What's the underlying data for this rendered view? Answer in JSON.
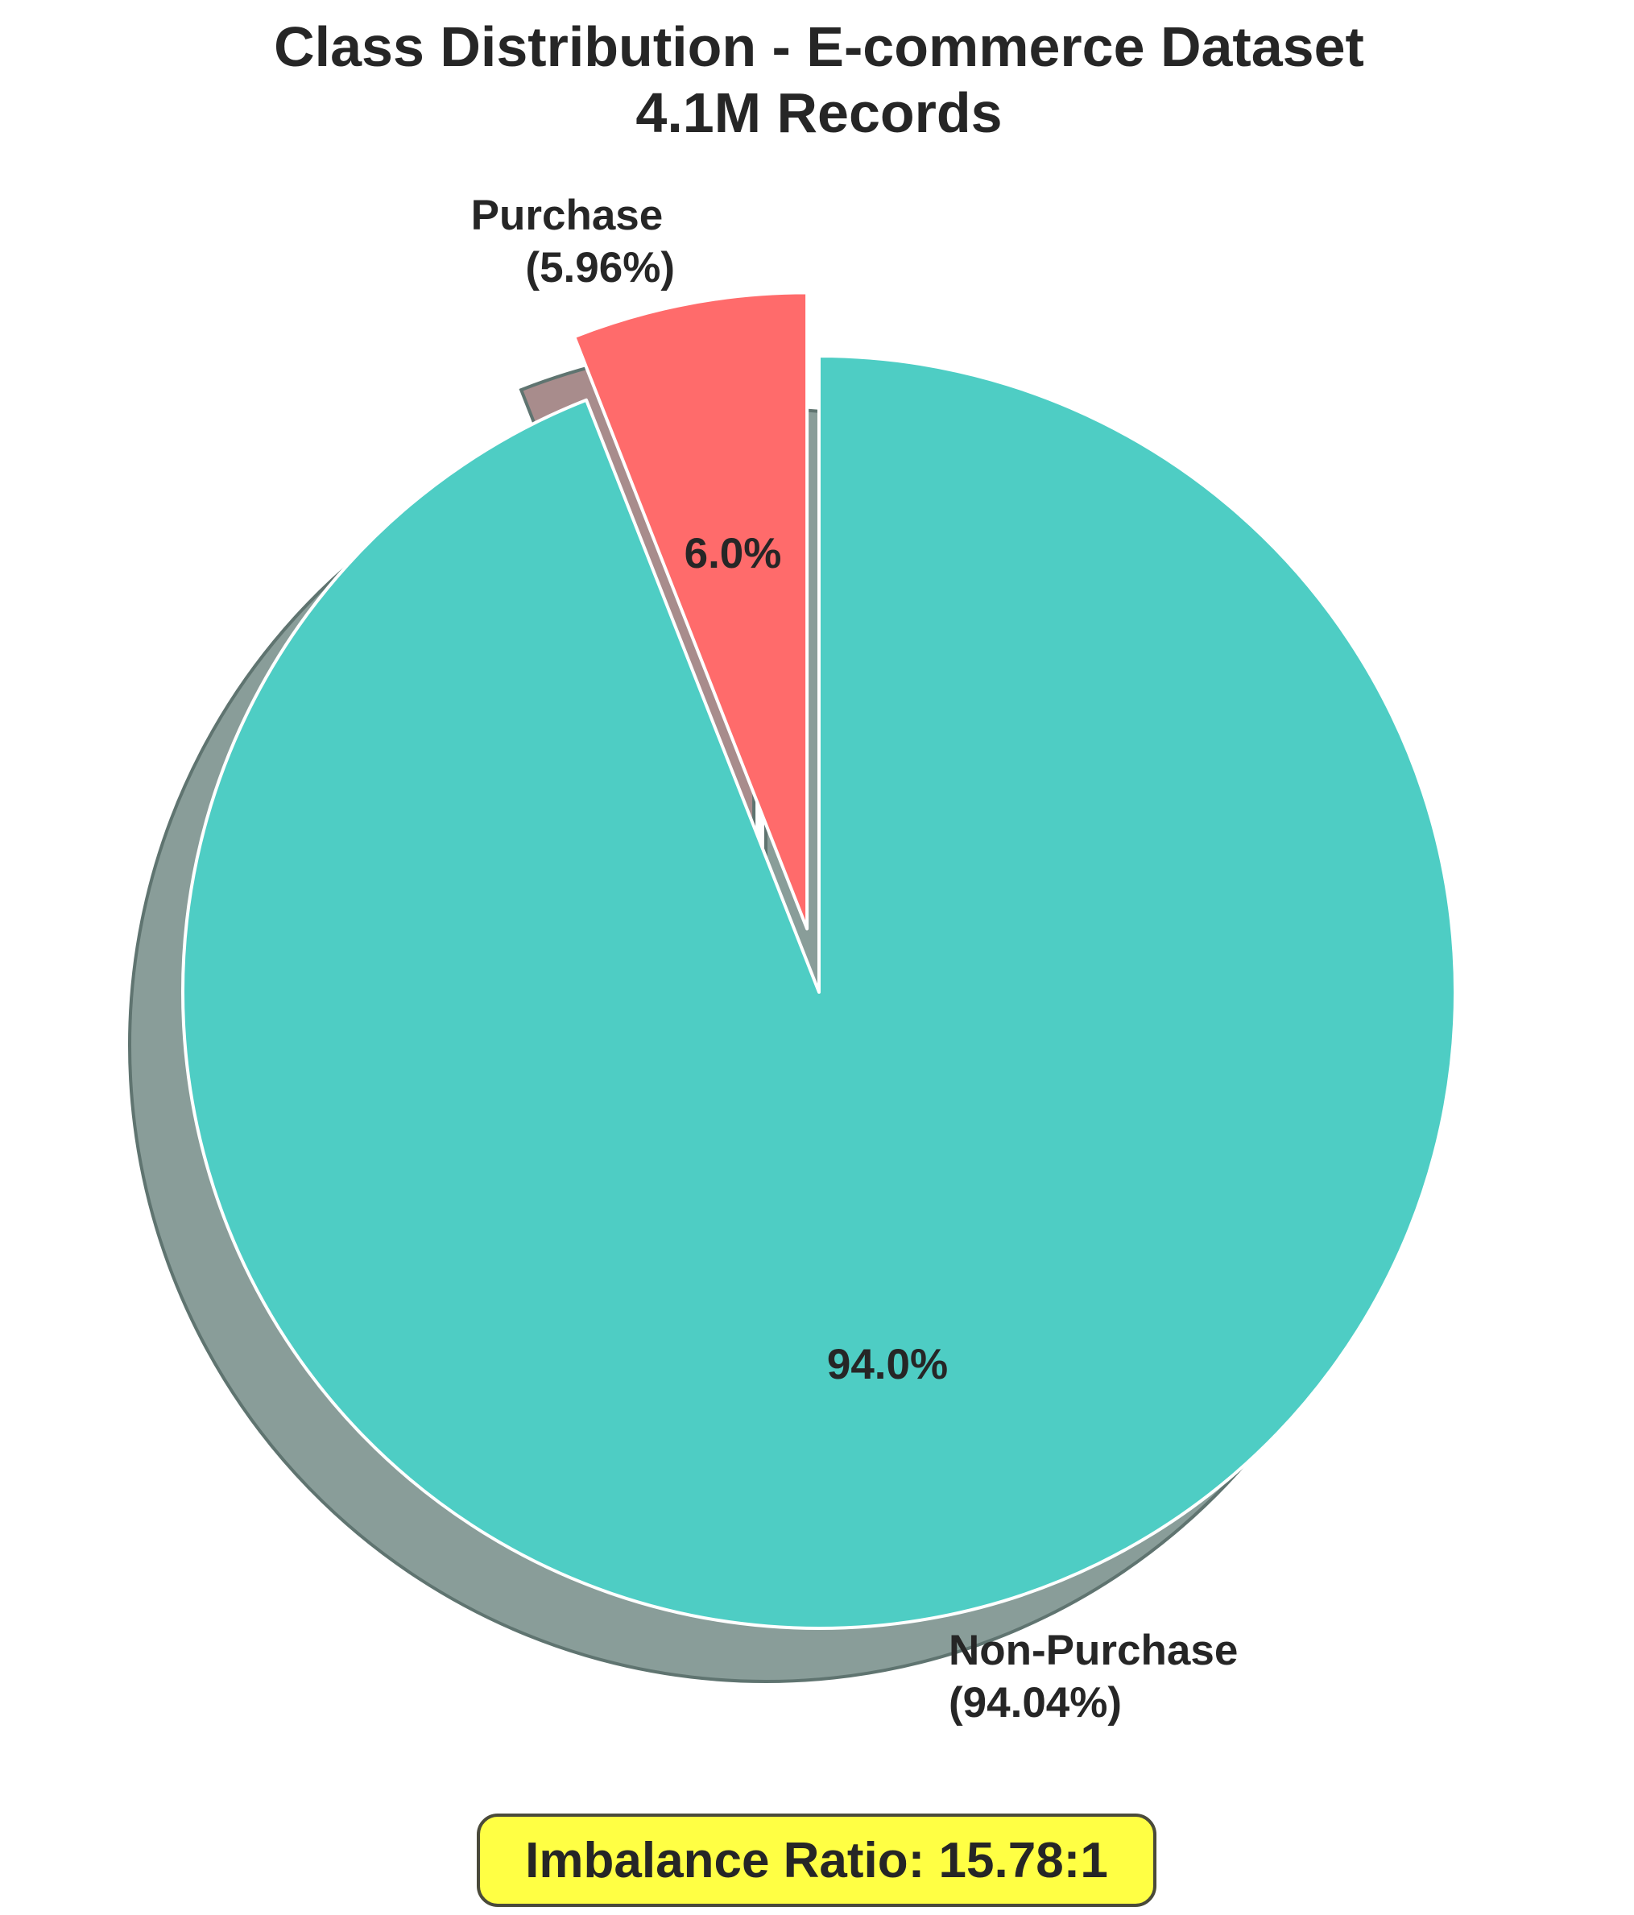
{
  "chart_data": {
    "type": "pie",
    "title": "Class Distribution - E-commerce Dataset",
    "subtitle": "4.1M Records",
    "slices": [
      {
        "label": "Purchase",
        "label_percent": "(5.96%)",
        "value": 5.96,
        "autopct": "6.0%",
        "color": "#ff6b6b",
        "shadow_color": "#a88c8c",
        "exploded": true
      },
      {
        "label": "Non-Purchase",
        "label_percent": "(94.04%)",
        "value": 94.04,
        "autopct": "94.0%",
        "color": "#4ecdc4",
        "shadow_color": "#899d99",
        "exploded": false
      }
    ],
    "start_angle": "90 (counter-clockwise)",
    "shadow": true
  },
  "annotation": {
    "text": "Imbalance Ratio: 15.78:1",
    "background": "#ffff44"
  }
}
